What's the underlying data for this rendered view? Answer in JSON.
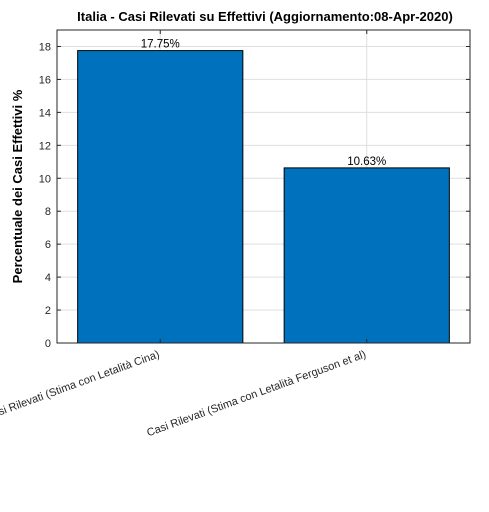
{
  "chart_data": {
    "type": "bar",
    "title": "Italia - Casi Rilevati su Effettivi (Aggiornamento:08-Apr-2020)",
    "xlabel": "",
    "ylabel": "Percentuale dei Casi Effettivi %",
    "categories": [
      "Casi Rilevati (Stima con Letalità Cina)",
      "Casi Rilevati (Stima con Letalità Ferguson et al)"
    ],
    "values": [
      17.75,
      10.63
    ],
    "data_labels": [
      "17.75%",
      "10.63%"
    ],
    "ylim": [
      0,
      19
    ],
    "yticks": [
      0,
      2,
      4,
      6,
      8,
      10,
      12,
      14,
      16,
      18
    ],
    "grid": true,
    "bar_color": "#0072bd"
  }
}
